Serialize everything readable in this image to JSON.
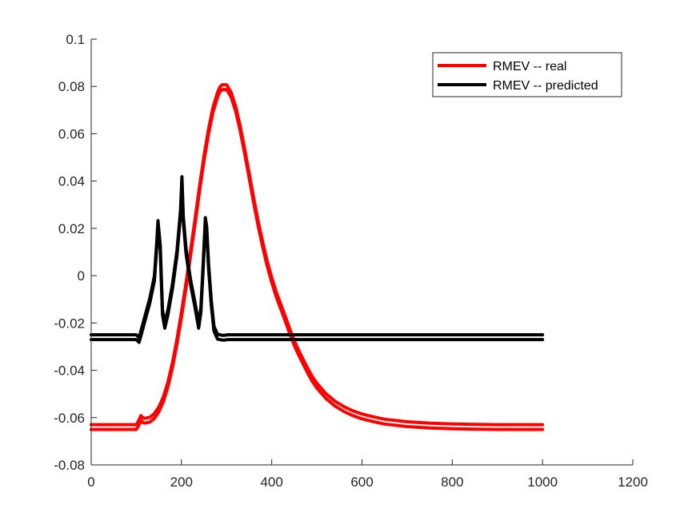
{
  "chart_data": {
    "type": "line",
    "title": "",
    "xlabel": "",
    "ylabel": "",
    "xlim": [
      0,
      1200
    ],
    "ylim": [
      -0.08,
      0.1
    ],
    "xticks": [
      0,
      200,
      400,
      600,
      800,
      1000,
      1200
    ],
    "yticks": [
      -0.08,
      -0.06,
      -0.04,
      -0.02,
      0,
      0.02,
      0.04,
      0.06,
      0.08,
      0.1
    ],
    "xtick_labels": [
      "0",
      "200",
      "400",
      "600",
      "800",
      "1000",
      "1200"
    ],
    "ytick_labels": [
      "-0.08",
      "-0.06",
      "-0.04",
      "-0.02",
      "0",
      "0.02",
      "0.04",
      "0.06",
      "0.08",
      "0.1"
    ],
    "grid": false,
    "legend_position": "top-right",
    "legend": [
      "RMEV -- real",
      "RMEV -- predicted"
    ],
    "series": [
      {
        "name": "RMEV -- real",
        "color": "#ff0000",
        "x": [
          0,
          100,
          104,
          110,
          115,
          120,
          130,
          140,
          150,
          160,
          170,
          180,
          190,
          200,
          210,
          220,
          230,
          240,
          250,
          260,
          270,
          280,
          285,
          290,
          300,
          310,
          320,
          330,
          340,
          350,
          360,
          370,
          380,
          390,
          400,
          410,
          420,
          430,
          440,
          450,
          460,
          470,
          480,
          490,
          500,
          520,
          540,
          560,
          580,
          600,
          625,
          650,
          700,
          750,
          800,
          850,
          900,
          1000
        ],
        "y": [
          -0.065,
          -0.065,
          -0.0638,
          -0.0612,
          -0.0622,
          -0.0623,
          -0.0619,
          -0.0603,
          -0.0575,
          -0.0532,
          -0.047,
          -0.0388,
          -0.0289,
          -0.0176,
          -0.0052,
          0.0082,
          0.0219,
          0.0357,
          0.0486,
          0.06,
          0.0692,
          0.0756,
          0.0777,
          0.0787,
          0.0787,
          0.0755,
          0.0696,
          0.0613,
          0.0516,
          0.0412,
          0.0308,
          0.021,
          0.0121,
          0.0041,
          -0.0029,
          -0.0089,
          -0.014,
          -0.0192,
          -0.0245,
          -0.0295,
          -0.0337,
          -0.0376,
          -0.0413,
          -0.0447,
          -0.0475,
          -0.0519,
          -0.0551,
          -0.0574,
          -0.0592,
          -0.0605,
          -0.0617,
          -0.0627,
          -0.0638,
          -0.0644,
          -0.0647,
          -0.0649,
          -0.065,
          -0.065
        ]
      },
      {
        "name": "RMEV -- predicted",
        "color": "#000000",
        "x": [
          0,
          100,
          106,
          110,
          120,
          130,
          140,
          145,
          148,
          153,
          158,
          163,
          170,
          180,
          190,
          198,
          201,
          204,
          210,
          220,
          230,
          238,
          243,
          248,
          253,
          256,
          260,
          266,
          272,
          280,
          290,
          296,
          302,
          1000
        ],
        "y": [
          -0.027,
          -0.027,
          -0.0282,
          -0.0255,
          -0.0185,
          -0.0115,
          -0.0022,
          0.0115,
          0.0212,
          0.0108,
          -0.0165,
          -0.0222,
          -0.0165,
          -0.0055,
          0.0085,
          0.0258,
          0.0398,
          0.0232,
          0.0095,
          -0.0035,
          -0.0135,
          -0.0222,
          -0.0155,
          0.0025,
          0.0225,
          0.0185,
          0.0032,
          -0.0125,
          -0.0235,
          -0.0268,
          -0.0272,
          -0.0272,
          -0.027,
          -0.027
        ]
      }
    ]
  }
}
